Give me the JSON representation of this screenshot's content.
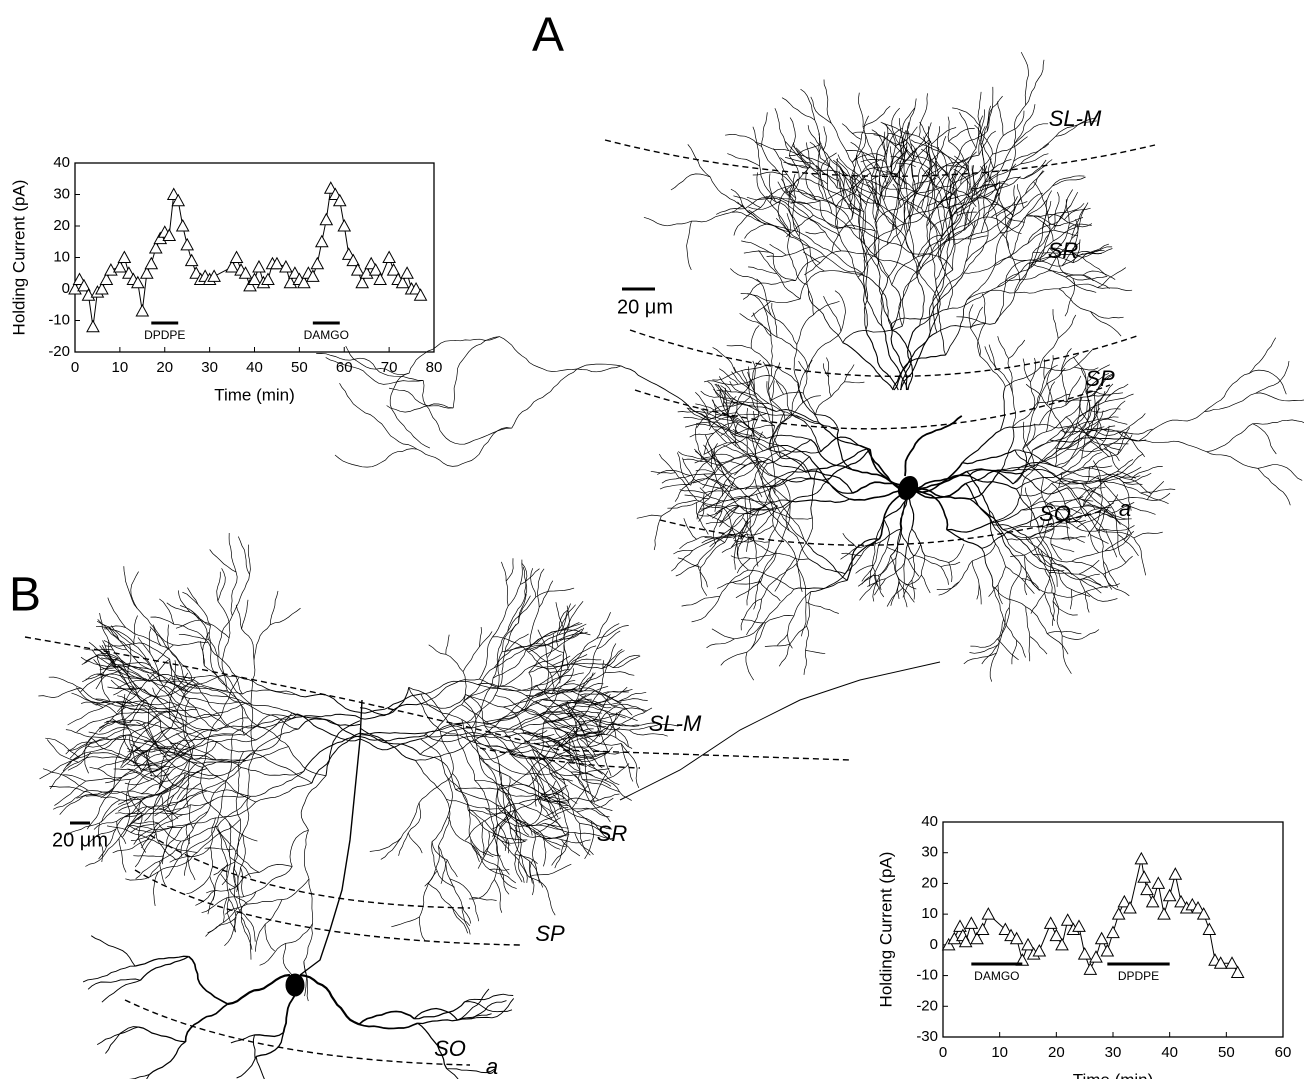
{
  "panels": [
    {
      "label": "A",
      "layers": [
        "SL-M",
        "SR",
        "SP",
        "SO",
        "a"
      ],
      "scale_bar": "20 μm"
    },
    {
      "label": "B",
      "layers": [
        "SL-M",
        "SR",
        "SP",
        "SO",
        "a"
      ],
      "scale_bar": "20 μm"
    }
  ],
  "chart_data": [
    {
      "type": "line",
      "marker": "triangle",
      "color": "#000000",
      "x_label": "Time (min)",
      "y_label": "Holding Current (pA)",
      "x": [
        0,
        1,
        2,
        3,
        4,
        5,
        6,
        7,
        8,
        10,
        11,
        12,
        13,
        14,
        15,
        16,
        17,
        18,
        19,
        20,
        21,
        22,
        23,
        24,
        25,
        26,
        27,
        28,
        29,
        30,
        31,
        35,
        36,
        37,
        38,
        39,
        40,
        41,
        42,
        43,
        44,
        45,
        47,
        48,
        49,
        50,
        51,
        52,
        53,
        54,
        55,
        56,
        57,
        58,
        59,
        60,
        61,
        62,
        63,
        64,
        65,
        66,
        67,
        68,
        70,
        71,
        72,
        73,
        74,
        75,
        76,
        77
      ],
      "values": [
        0,
        3,
        1,
        -2,
        -12,
        -1,
        0,
        3,
        6,
        7,
        10,
        5,
        3,
        2,
        -7,
        5,
        8,
        13,
        16,
        18,
        17,
        30,
        28,
        20,
        14,
        9,
        5,
        3,
        4,
        3,
        4,
        7,
        10,
        6,
        5,
        1,
        3,
        7,
        2,
        3,
        8,
        8,
        7,
        2,
        5,
        3,
        2,
        5,
        4,
        8,
        15,
        22,
        32,
        30,
        28,
        20,
        11,
        9,
        6,
        2,
        5,
        8,
        6,
        3,
        10,
        6,
        3,
        2,
        5,
        0,
        0,
        -2
      ],
      "xlim": [
        0,
        80
      ],
      "xticks": [
        0,
        10,
        20,
        30,
        40,
        50,
        60,
        70,
        80
      ],
      "ylim": [
        -20,
        40
      ],
      "yticks": [
        -20,
        -10,
        0,
        10,
        20,
        30,
        40
      ],
      "annotations": [
        {
          "text": "DPDPE",
          "x": [
            17,
            23
          ]
        },
        {
          "text": "DAMGO",
          "x": [
            53,
            59
          ]
        }
      ]
    },
    {
      "type": "line",
      "marker": "triangle",
      "color": "#000000",
      "x_label": "Time (min)",
      "y_label": "Holding Current (pA)",
      "x": [
        1,
        2,
        3,
        3.5,
        4,
        5,
        6,
        7,
        8,
        11,
        12,
        13,
        14,
        15,
        16,
        17,
        19,
        20,
        21,
        22,
        23,
        24,
        25,
        26,
        27,
        28,
        29,
        30,
        31,
        32,
        33,
        35,
        35.5,
        36,
        37,
        38,
        39,
        40,
        41,
        42,
        43,
        44,
        45,
        46,
        47,
        48,
        49,
        51,
        52
      ],
      "values": [
        0,
        2,
        6,
        3,
        1,
        7,
        2,
        5,
        10,
        5,
        3,
        2,
        -5,
        0,
        -3,
        -2,
        7,
        3,
        0,
        8,
        5,
        6,
        -3,
        -8,
        -4,
        2,
        -2,
        4,
        10,
        14,
        12,
        28,
        22,
        18,
        14,
        20,
        10,
        16,
        23,
        14,
        12,
        13,
        12,
        10,
        5,
        -5,
        -6,
        -6,
        -9
      ],
      "xlim": [
        0,
        60
      ],
      "xticks": [
        0,
        10,
        20,
        30,
        40,
        50,
        60
      ],
      "ylim": [
        -30,
        40
      ],
      "yticks": [
        -30,
        -20,
        -10,
        0,
        10,
        20,
        30,
        40
      ],
      "annotations": [
        {
          "text": "DAMGO",
          "x": [
            5,
            14
          ]
        },
        {
          "text": "DPDPE",
          "x": [
            29,
            40
          ]
        }
      ]
    }
  ]
}
